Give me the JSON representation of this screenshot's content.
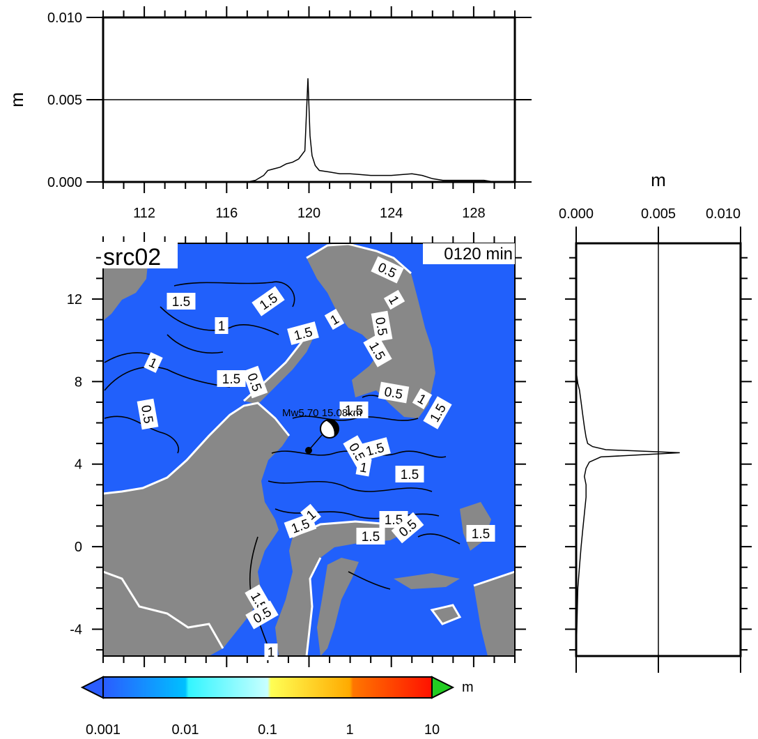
{
  "chart_data": [
    {
      "type": "line",
      "panel": "top",
      "ylabel": "m",
      "ylim": [
        0.0,
        0.01
      ],
      "xlim": [
        110,
        130
      ],
      "y_ticks": [
        "0.000",
        "0.005",
        "0.010"
      ],
      "x_ticks": [
        "112",
        "116",
        "120",
        "124",
        "128"
      ],
      "series": [
        {
          "x": [
            110,
            117.0,
            117.4,
            117.8,
            118.0,
            118.3,
            118.6,
            118.9,
            119.2,
            119.5,
            119.8,
            119.95,
            120.05,
            120.15,
            120.3,
            120.5,
            121.0,
            121.5,
            122.0,
            123.0,
            124.0,
            125.0,
            125.5,
            126.0,
            126.5,
            127.0,
            127.5,
            128.0,
            128.5,
            129.0,
            130
          ],
          "y": [
            0,
            0,
            0.0001,
            0.0004,
            0.0007,
            0.0008,
            0.0009,
            0.0011,
            0.0012,
            0.0014,
            0.0019,
            0.0063,
            0.0028,
            0.0016,
            0.001,
            0.0007,
            0.0006,
            0.0005,
            0.0005,
            0.0004,
            0.0004,
            0.0005,
            0.0004,
            0.0002,
            0.0001,
            0.0001,
            0.0001,
            0.0001,
            0.0001,
            0,
            0
          ]
        }
      ]
    },
    {
      "type": "line",
      "panel": "right",
      "xlabel": "m",
      "xlim": [
        0.0,
        0.01
      ],
      "ylim": [
        -5.3,
        14.7
      ],
      "x_ticks": [
        "0.000",
        "0.005",
        "0.010"
      ],
      "series": [
        {
          "y": [
            -5.3,
            -2.0,
            -1.0,
            0.0,
            0.8,
            1.6,
            2.4,
            3.0,
            3.4,
            3.8,
            4.1,
            4.35,
            4.55,
            4.7,
            4.85,
            5.0,
            5.3,
            5.8,
            6.4,
            7.0,
            7.6,
            7.9,
            8.5,
            14.7
          ],
          "x": [
            0,
            0.0001,
            0.0002,
            0.0003,
            0.0004,
            0.0005,
            0.0006,
            0.0006,
            0.0005,
            0.0006,
            0.0008,
            0.0015,
            0.0063,
            0.0018,
            0.001,
            0.0007,
            0.0006,
            0.0005,
            0.0004,
            0.0003,
            0.0002,
            0.0001,
            0,
            0
          ]
        }
      ]
    },
    {
      "type": "heatmap",
      "panel": "map",
      "title": "src02",
      "time_label": "0120 min",
      "event_label": "Mw5.70 15.08km",
      "xlim": [
        110,
        130
      ],
      "ylim": [
        -5.3,
        14.7
      ],
      "y_ticks": [
        "12",
        "8",
        "4",
        "0",
        "-4"
      ],
      "contour_labels": [
        "1.5",
        "1",
        "0.5"
      ],
      "colors": {
        "ocean": "#1f62ff",
        "land": "#888888",
        "contour": "#000000",
        "coast": "#ffffff"
      }
    },
    {
      "type": "colorbar",
      "unit": "m",
      "ticks": [
        "0.001",
        "0.01",
        "0.1",
        "1",
        "10"
      ],
      "colors": [
        "#1f62ff",
        "#00c8ff",
        "#ffff33",
        "#ff6600",
        "#ff1a00",
        "#22cc22"
      ]
    }
  ]
}
